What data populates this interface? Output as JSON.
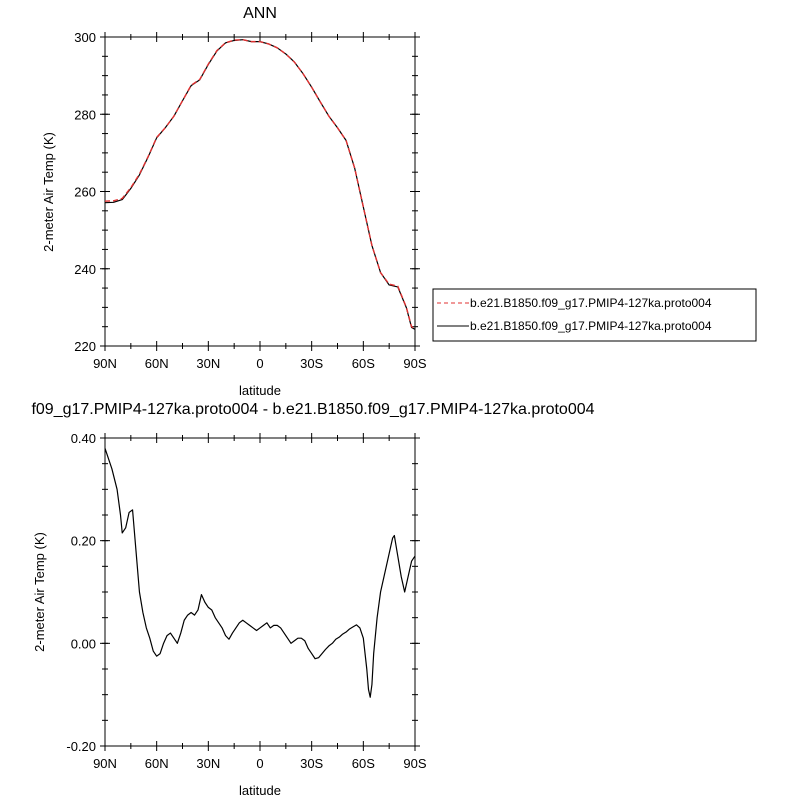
{
  "chart_data": [
    {
      "type": "line",
      "title": "ANN",
      "xlabel": "latitude",
      "ylabel": "2-meter Air Temp (K)",
      "xlim": [
        90,
        -90
      ],
      "ylim": [
        220,
        300
      ],
      "x_ticks": [
        90,
        60,
        30,
        0,
        -30,
        -60,
        -90
      ],
      "x_tick_labels": [
        "90N",
        "60N",
        "30N",
        "0",
        "30S",
        "60S",
        "90S"
      ],
      "y_ticks": [
        220,
        240,
        260,
        280,
        300
      ],
      "y_tick_labels": [
        "220",
        "240",
        "260",
        "280",
        "300"
      ],
      "legend_position": "right",
      "series": [
        {
          "name": "b.e21.B1850.f09_g17.PMIP4-127ka.proto004",
          "color": "#e03030",
          "dash": "dashed",
          "x": [
            90,
            85,
            80,
            75,
            70,
            65,
            60,
            55,
            50,
            45,
            40,
            35,
            30,
            25,
            20,
            15,
            10,
            5,
            0,
            -5,
            -10,
            -15,
            -20,
            -25,
            -30,
            -35,
            -40,
            -45,
            -50,
            -55,
            -60,
            -65,
            -70,
            -75,
            -80,
            -85,
            -88,
            -90
          ],
          "y": [
            257.5,
            257.6,
            258.2,
            261,
            264.5,
            269,
            274,
            276.5,
            279.5,
            283.5,
            287.5,
            289,
            293,
            296.5,
            298.5,
            299.2,
            299.3,
            298.8,
            298.8,
            298.2,
            297.2,
            295.6,
            293.5,
            290.5,
            287,
            283.2,
            279.5,
            276.5,
            273.2,
            266,
            256,
            246,
            239,
            236,
            235.5,
            230,
            225,
            224.5
          ]
        },
        {
          "name": "b.e21.B1850.f09_g17.PMIP4-127ka.proto004",
          "color": "#000000",
          "dash": "solid",
          "x": [
            90,
            85,
            80,
            75,
            70,
            65,
            60,
            55,
            50,
            45,
            40,
            35,
            30,
            25,
            20,
            15,
            10,
            5,
            0,
            -5,
            -10,
            -15,
            -20,
            -25,
            -30,
            -35,
            -40,
            -45,
            -50,
            -55,
            -60,
            -65,
            -70,
            -75,
            -80,
            -85,
            -88,
            -90
          ],
          "y": [
            257.1,
            257.2,
            257.9,
            260.8,
            264.3,
            268.9,
            273.9,
            276.5,
            279.5,
            283.5,
            287.4,
            288.9,
            292.9,
            296.4,
            298.5,
            299.1,
            299.3,
            298.8,
            298.8,
            298.2,
            297.2,
            295.6,
            293.5,
            290.5,
            287,
            283.2,
            279.5,
            276.5,
            273.2,
            266,
            256,
            246,
            239,
            235.8,
            235.3,
            229.9,
            224.8,
            224.3
          ]
        }
      ]
    },
    {
      "type": "line",
      "title": "f09_g17.PMIP4-127ka.proto004 - b.e21.B1850.f09_g17.PMIP4-127ka.proto004",
      "xlabel": "latitude",
      "ylabel": "2-meter Air Temp (K)",
      "xlim": [
        90,
        -90
      ],
      "ylim": [
        -0.2,
        0.4
      ],
      "x_ticks": [
        90,
        60,
        30,
        0,
        -30,
        -60,
        -90
      ],
      "x_tick_labels": [
        "90N",
        "60N",
        "30N",
        "0",
        "30S",
        "60S",
        "90S"
      ],
      "y_ticks": [
        -0.2,
        0,
        0.2,
        0.4
      ],
      "y_tick_labels": [
        "-0.20",
        "0.00",
        "0.20",
        "0.40"
      ],
      "series": [
        {
          "color": "#000000",
          "dash": "solid",
          "x": [
            90,
            86,
            83,
            81,
            80,
            78,
            76,
            74,
            72,
            70,
            68,
            66,
            64,
            62,
            60,
            58,
            56,
            54,
            52,
            50,
            48,
            46,
            44,
            42,
            40,
            38,
            36,
            34,
            32,
            30,
            28,
            26,
            24,
            22,
            20,
            18,
            16,
            14,
            12,
            10,
            8,
            6,
            4,
            2,
            0,
            -2,
            -4,
            -6,
            -8,
            -10,
            -12,
            -14,
            -16,
            -18,
            -20,
            -22,
            -24,
            -26,
            -28,
            -30,
            -32,
            -34,
            -36,
            -38,
            -40,
            -42,
            -44,
            -46,
            -48,
            -50,
            -52,
            -54,
            -56,
            -58,
            -60,
            -62,
            -63,
            -64,
            -65,
            -66,
            -68,
            -70,
            -72,
            -74,
            -76,
            -77,
            -78,
            -80,
            -82,
            -84,
            -86,
            -88,
            -90
          ],
          "y": [
            0.38,
            0.34,
            0.3,
            0.25,
            0.215,
            0.225,
            0.255,
            0.26,
            0.18,
            0.1,
            0.06,
            0.03,
            0.01,
            -0.015,
            -0.025,
            -0.02,
            0.0,
            0.015,
            0.02,
            0.01,
            0.0,
            0.02,
            0.045,
            0.055,
            0.06,
            0.055,
            0.065,
            0.095,
            0.08,
            0.07,
            0.065,
            0.05,
            0.04,
            0.03,
            0.015,
            0.008,
            0.02,
            0.03,
            0.04,
            0.045,
            0.04,
            0.035,
            0.03,
            0.025,
            0.03,
            0.035,
            0.04,
            0.03,
            0.035,
            0.035,
            0.03,
            0.02,
            0.01,
            0.0,
            0.005,
            0.01,
            0.01,
            0.005,
            -0.01,
            -0.02,
            -0.03,
            -0.028,
            -0.02,
            -0.012,
            -0.005,
            0.0,
            0.008,
            0.012,
            0.018,
            0.022,
            0.028,
            0.032,
            0.036,
            0.03,
            0.01,
            -0.05,
            -0.09,
            -0.105,
            -0.08,
            -0.02,
            0.05,
            0.1,
            0.13,
            0.16,
            0.19,
            0.205,
            0.21,
            0.17,
            0.13,
            0.1,
            0.13,
            0.16,
            0.17
          ]
        }
      ]
    }
  ]
}
